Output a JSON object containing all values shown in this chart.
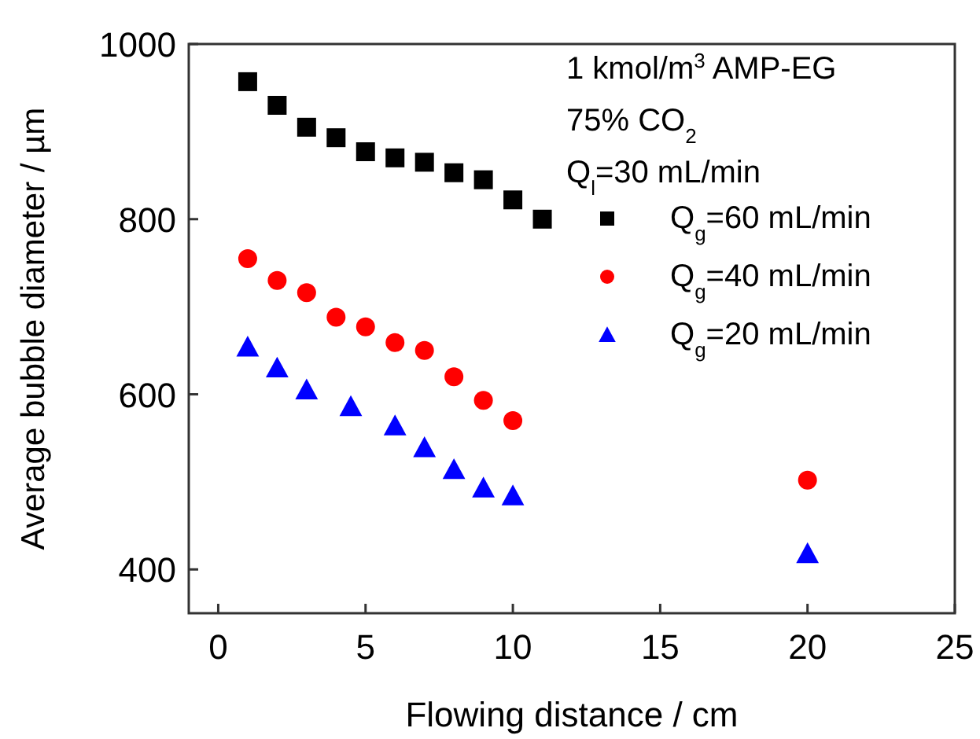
{
  "chart_data": {
    "type": "scatter",
    "xlabel": "Flowing distance / cm",
    "ylabel": "Average bubble diameter / µm",
    "xlim": [
      -1,
      25
    ],
    "xticks": [
      0,
      5,
      10,
      15,
      20,
      25
    ],
    "ylim": [
      350,
      1000
    ],
    "yticks": [
      400,
      600,
      800,
      1000
    ],
    "grid": false,
    "legend": "top right",
    "annotations": [
      "1 kmol/m$^{3}$ AMP-EG",
      "75% CO$_{2}$",
      "Q$_{l}$=30 mL/min"
    ],
    "series": [
      {
        "name": "Q$_{g}$=60 mL/min",
        "color": "#000000",
        "marker": "square",
        "x": [
          1,
          2,
          3,
          4,
          5,
          6,
          7,
          8,
          9,
          10,
          11
        ],
        "values": [
          957,
          930,
          905,
          893,
          877,
          870,
          865,
          853,
          845,
          822,
          800
        ]
      },
      {
        "name": "Q$_{g}$=40 mL/min",
        "color": "#ff0000",
        "marker": "circle",
        "x": [
          1,
          2,
          3,
          4,
          5,
          6,
          7,
          8,
          9,
          10,
          20
        ],
        "values": [
          755,
          730,
          716,
          688,
          677,
          659,
          650,
          620,
          593,
          570,
          502
        ]
      },
      {
        "name": "Q$_{g}$=20 mL/min",
        "color": "#0000ff",
        "marker": "triangle",
        "x": [
          1,
          2,
          3,
          4.5,
          6,
          7,
          8,
          9,
          10,
          20
        ],
        "values": [
          654,
          630,
          605,
          586,
          564,
          539,
          514,
          493,
          484,
          418
        ]
      }
    ]
  }
}
